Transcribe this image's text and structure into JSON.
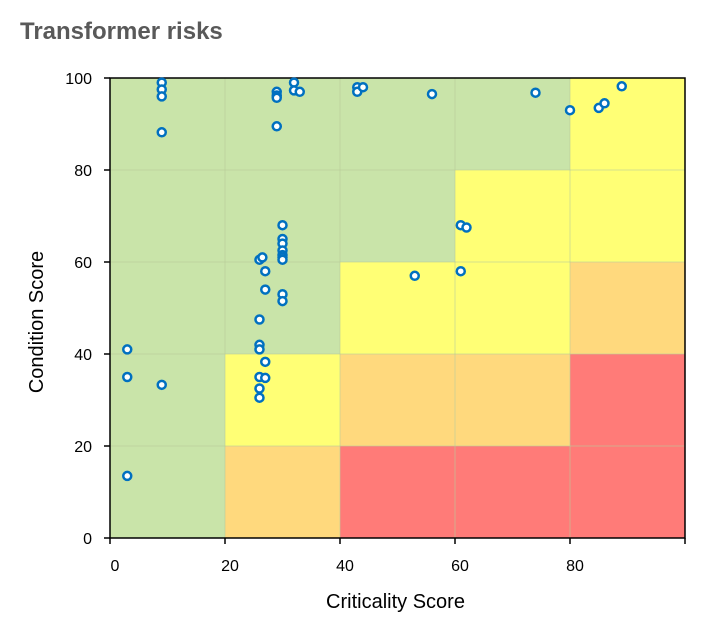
{
  "chart_data": {
    "type": "scatter",
    "title": "Transformer risks",
    "xlabel": "Criticality Score",
    "ylabel": "Condition Score",
    "xlim": [
      0,
      100
    ],
    "ylim": [
      0,
      100
    ],
    "x_ticks": [
      0,
      20,
      40,
      60,
      80
    ],
    "y_ticks": [
      0,
      20,
      40,
      60,
      80,
      100
    ],
    "grid": true,
    "colors": {
      "green": "#c9e4a9",
      "yellow": "#ffff75",
      "orange": "#ffd97d",
      "red": "#ff7b78",
      "marker": "#0070c0",
      "title": "#595959"
    },
    "risk_zones": [
      {
        "x": [
          0,
          20
        ],
        "y": [
          0,
          20
        ],
        "level": "green"
      },
      {
        "x": [
          20,
          40
        ],
        "y": [
          0,
          20
        ],
        "level": "orange"
      },
      {
        "x": [
          40,
          60
        ],
        "y": [
          0,
          20
        ],
        "level": "red"
      },
      {
        "x": [
          60,
          80
        ],
        "y": [
          0,
          20
        ],
        "level": "red"
      },
      {
        "x": [
          80,
          100
        ],
        "y": [
          0,
          20
        ],
        "level": "red"
      },
      {
        "x": [
          0,
          20
        ],
        "y": [
          20,
          40
        ],
        "level": "green"
      },
      {
        "x": [
          20,
          40
        ],
        "y": [
          20,
          40
        ],
        "level": "yellow"
      },
      {
        "x": [
          40,
          60
        ],
        "y": [
          20,
          40
        ],
        "level": "orange"
      },
      {
        "x": [
          60,
          80
        ],
        "y": [
          20,
          40
        ],
        "level": "orange"
      },
      {
        "x": [
          80,
          100
        ],
        "y": [
          20,
          40
        ],
        "level": "red"
      },
      {
        "x": [
          0,
          20
        ],
        "y": [
          40,
          60
        ],
        "level": "green"
      },
      {
        "x": [
          20,
          40
        ],
        "y": [
          40,
          60
        ],
        "level": "green"
      },
      {
        "x": [
          40,
          60
        ],
        "y": [
          40,
          60
        ],
        "level": "yellow"
      },
      {
        "x": [
          60,
          80
        ],
        "y": [
          40,
          60
        ],
        "level": "yellow"
      },
      {
        "x": [
          80,
          100
        ],
        "y": [
          40,
          60
        ],
        "level": "orange"
      },
      {
        "x": [
          0,
          20
        ],
        "y": [
          60,
          80
        ],
        "level": "green"
      },
      {
        "x": [
          20,
          40
        ],
        "y": [
          60,
          80
        ],
        "level": "green"
      },
      {
        "x": [
          40,
          60
        ],
        "y": [
          60,
          80
        ],
        "level": "green"
      },
      {
        "x": [
          60,
          80
        ],
        "y": [
          60,
          80
        ],
        "level": "yellow"
      },
      {
        "x": [
          80,
          100
        ],
        "y": [
          60,
          80
        ],
        "level": "yellow"
      },
      {
        "x": [
          0,
          20
        ],
        "y": [
          80,
          100
        ],
        "level": "green"
      },
      {
        "x": [
          20,
          40
        ],
        "y": [
          80,
          100
        ],
        "level": "green"
      },
      {
        "x": [
          40,
          60
        ],
        "y": [
          80,
          100
        ],
        "level": "green"
      },
      {
        "x": [
          60,
          80
        ],
        "y": [
          80,
          100
        ],
        "level": "green"
      },
      {
        "x": [
          80,
          100
        ],
        "y": [
          80,
          100
        ],
        "level": "yellow"
      }
    ],
    "points": [
      [
        3,
        41
      ],
      [
        3,
        35
      ],
      [
        3,
        13.5
      ],
      [
        9,
        33.3
      ],
      [
        9,
        99
      ],
      [
        9,
        97.5
      ],
      [
        9,
        96
      ],
      [
        9,
        88.2
      ],
      [
        26,
        60.5
      ],
      [
        26.5,
        61
      ],
      [
        27,
        58
      ],
      [
        27,
        54
      ],
      [
        26,
        47.5
      ],
      [
        26,
        42
      ],
      [
        26,
        41
      ],
      [
        27,
        38.3
      ],
      [
        26,
        35
      ],
      [
        27,
        34.8
      ],
      [
        26,
        32.5
      ],
      [
        26,
        30.5
      ],
      [
        29,
        97
      ],
      [
        29,
        96.2
      ],
      [
        29,
        95.7
      ],
      [
        29,
        89.5
      ],
      [
        30,
        68
      ],
      [
        30,
        65
      ],
      [
        30,
        64
      ],
      [
        30,
        62.5
      ],
      [
        30,
        61.5
      ],
      [
        30,
        61
      ],
      [
        30,
        60.5
      ],
      [
        30,
        53
      ],
      [
        30,
        51.5
      ],
      [
        32,
        99
      ],
      [
        32,
        97.3
      ],
      [
        33,
        97
      ],
      [
        43,
        98
      ],
      [
        43,
        97
      ],
      [
        44,
        98
      ],
      [
        56,
        96.5
      ],
      [
        53,
        57
      ],
      [
        61,
        68
      ],
      [
        62,
        67.5
      ],
      [
        61,
        58
      ],
      [
        74,
        96.8
      ],
      [
        80,
        93
      ],
      [
        85,
        93.5
      ],
      [
        86,
        94.5
      ],
      [
        89,
        98.2
      ]
    ]
  }
}
